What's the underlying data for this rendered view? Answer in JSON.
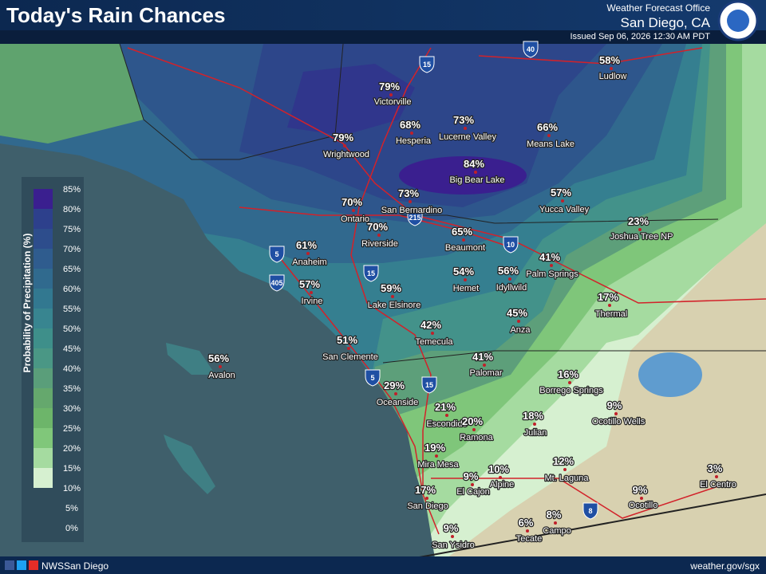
{
  "header": {
    "title": "Today's Rain Chances",
    "office_line1": "Weather Forecast Office",
    "office_line2": "San Diego, CA",
    "issued": "Issued Sep 06, 2026 12:30 AM PDT"
  },
  "legend": {
    "title": "Probability of Precipitation (%)",
    "ticks": [
      "85%",
      "80%",
      "75%",
      "70%",
      "65%",
      "60%",
      "55%",
      "50%",
      "45%",
      "40%",
      "35%",
      "30%",
      "25%",
      "20%",
      "15%",
      "10%",
      "5%",
      "0%"
    ]
  },
  "cities": [
    {
      "name": "Ludlow",
      "chance": "58%"
    },
    {
      "name": "Victorville",
      "chance": "79%"
    },
    {
      "name": "Hesperia",
      "chance": "68%"
    },
    {
      "name": "Lucerne Valley",
      "chance": "73%"
    },
    {
      "name": "Means Lake",
      "chance": "66%"
    },
    {
      "name": "Wrightwood",
      "chance": "79%"
    },
    {
      "name": "Big Bear Lake",
      "chance": "84%"
    },
    {
      "name": "Ontario",
      "chance": "70%"
    },
    {
      "name": "San Bernardino",
      "chance": "73%"
    },
    {
      "name": "Yucca Valley",
      "chance": "57%"
    },
    {
      "name": "Joshua Tree NP",
      "chance": "23%"
    },
    {
      "name": "Riverside",
      "chance": "70%"
    },
    {
      "name": "Beaumont",
      "chance": "65%"
    },
    {
      "name": "Anaheim",
      "chance": "61%"
    },
    {
      "name": "Palm Springs",
      "chance": "41%"
    },
    {
      "name": "Hemet",
      "chance": "54%"
    },
    {
      "name": "Idyllwild",
      "chance": "56%"
    },
    {
      "name": "Irvine",
      "chance": "57%"
    },
    {
      "name": "Lake Elsinore",
      "chance": "59%"
    },
    {
      "name": "Thermal",
      "chance": "17%"
    },
    {
      "name": "Anza",
      "chance": "45%"
    },
    {
      "name": "Temecula",
      "chance": "42%"
    },
    {
      "name": "San Clemente",
      "chance": "51%"
    },
    {
      "name": "Avalon",
      "chance": "56%"
    },
    {
      "name": "Palomar",
      "chance": "41%"
    },
    {
      "name": "Borrego Springs",
      "chance": "16%"
    },
    {
      "name": "Oceanside",
      "chance": "29%"
    },
    {
      "name": "Ocotillo Wells",
      "chance": "9%"
    },
    {
      "name": "Escondido",
      "chance": "21%"
    },
    {
      "name": "Ramona",
      "chance": "20%"
    },
    {
      "name": "Julian",
      "chance": "18%"
    },
    {
      "name": "Mira Mesa",
      "chance": "19%"
    },
    {
      "name": "Mt. Laguna",
      "chance": "12%"
    },
    {
      "name": "El Centro",
      "chance": "3%"
    },
    {
      "name": "Alpine",
      "chance": "10%"
    },
    {
      "name": "El Cajon",
      "chance": "9%"
    },
    {
      "name": "San Diego",
      "chance": "17%"
    },
    {
      "name": "Ocotillo",
      "chance": "9%"
    },
    {
      "name": "Campo",
      "chance": "8%"
    },
    {
      "name": "Tecate",
      "chance": "6%"
    },
    {
      "name": "San Ysidro",
      "chance": "9%"
    }
  ],
  "highways": [
    "40",
    "15",
    "5",
    "10",
    "215",
    "405",
    "15",
    "5",
    "15",
    "8"
  ],
  "footer": {
    "handle": "NWSSan Diego",
    "url": "weather.gov/sgx"
  }
}
